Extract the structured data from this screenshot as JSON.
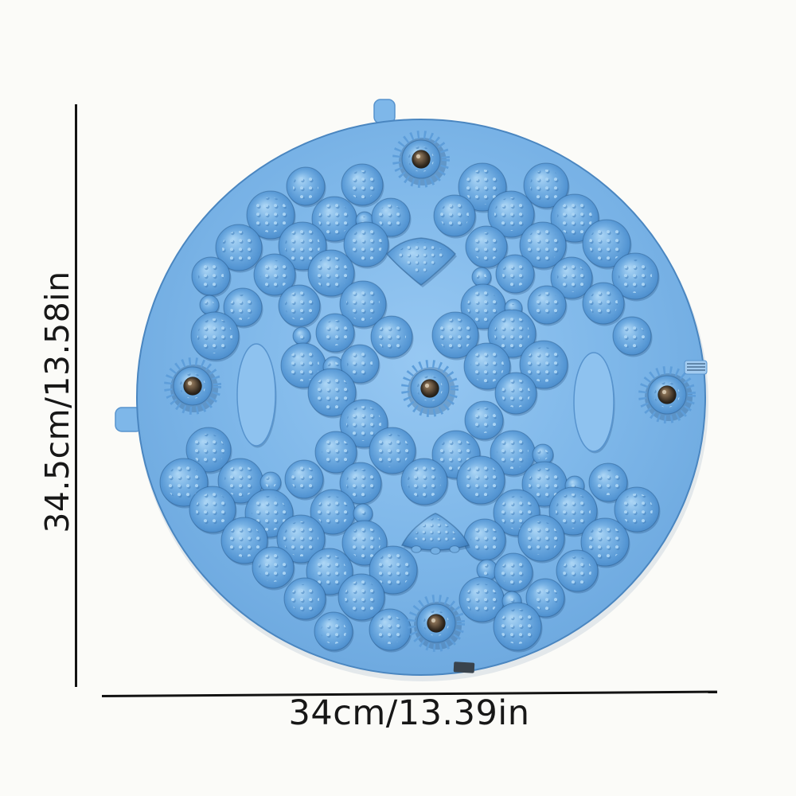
{
  "dimensions": {
    "height_label": "34.5cm/13.58in",
    "width_label": "34cm/13.39in"
  },
  "mat": {
    "magnet_count": 5
  },
  "colors": {
    "background": "#fbfbf8",
    "line": "#131313",
    "text": "#171717",
    "mat_base": "#7eb7e9",
    "mat_base_light": "#97c8f2",
    "mat_edge_soft": "#6ba7de",
    "mat_rim": "#4a86c0",
    "bump_light": "#aed7f6",
    "bump_mid": "#74afe3",
    "bump_dark": "#5697d4",
    "bump_rim": "#4484c3",
    "bump_stroke": "rgba(36,84,134,0.45)",
    "bump_shadow": "rgba(33,78,128,0.30)",
    "nub_light": "#a9d3f3",
    "nub_dark": "#3c7ab8",
    "oval_fill": "#8ec2ef",
    "oval_stroke": "#5793cd",
    "magnet_ring": "#5e9eda",
    "ball_light": "#a98f6c",
    "ball_mid": "#6e5a44",
    "ball_deep": "#332a1f",
    "ball_dark": "#120e0a",
    "ball_highlight": "#d9cdb6",
    "tab_dark": "#39434d",
    "tab_ridge_fill": "#a3ccf1",
    "tab_ridge_line": "#4a6f92"
  }
}
